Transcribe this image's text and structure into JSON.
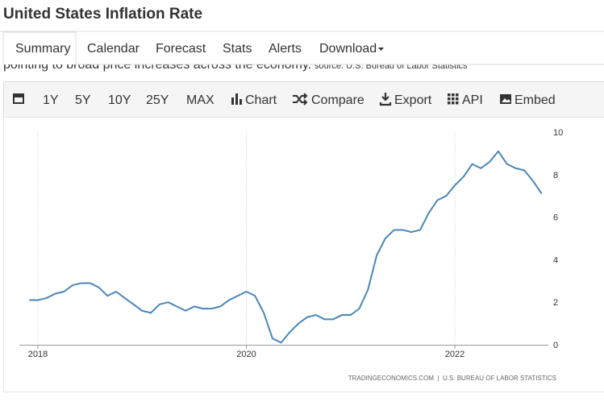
{
  "header": {
    "title": "United States Inflation Rate"
  },
  "nav": {
    "tabs": [
      "Summary",
      "Calendar",
      "Forecast",
      "Stats",
      "Alerts",
      "Download"
    ]
  },
  "description": {
    "text": "pointing to broad price increases across the economy.",
    "source": "source: U.S. Bureau of Labor Statistics"
  },
  "toolbar": {
    "ranges": [
      "1Y",
      "5Y",
      "10Y",
      "25Y",
      "MAX"
    ],
    "tools": [
      "Chart",
      "Compare",
      "Export",
      "API",
      "Embed"
    ]
  },
  "chart_data": {
    "type": "line",
    "x": [
      2017.917,
      2018,
      2018.083,
      2018.167,
      2018.25,
      2018.333,
      2018.417,
      2018.5,
      2018.583,
      2018.667,
      2018.75,
      2018.833,
      2018.917,
      2019,
      2019.083,
      2019.167,
      2019.25,
      2019.333,
      2019.417,
      2019.5,
      2019.583,
      2019.667,
      2019.75,
      2019.833,
      2019.917,
      2020,
      2020.083,
      2020.167,
      2020.25,
      2020.333,
      2020.417,
      2020.5,
      2020.583,
      2020.667,
      2020.75,
      2020.833,
      2020.917,
      2021,
      2021.083,
      2021.167,
      2021.25,
      2021.333,
      2021.417,
      2021.5,
      2021.583,
      2021.667,
      2021.75,
      2021.833,
      2021.917,
      2022,
      2022.083,
      2022.167,
      2022.25,
      2022.333,
      2022.417,
      2022.5,
      2022.583,
      2022.667,
      2022.75,
      2022.833
    ],
    "series": [
      {
        "name": "Inflation Rate",
        "color": "#4a86b8",
        "values": [
          2.1,
          2.1,
          2.2,
          2.4,
          2.5,
          2.8,
          2.9,
          2.9,
          2.7,
          2.3,
          2.5,
          2.2,
          1.9,
          1.6,
          1.5,
          1.9,
          2.0,
          1.8,
          1.6,
          1.8,
          1.7,
          1.7,
          1.8,
          2.1,
          2.3,
          2.5,
          2.3,
          1.5,
          0.3,
          0.1,
          0.6,
          1.0,
          1.3,
          1.4,
          1.2,
          1.2,
          1.4,
          1.4,
          1.7,
          2.6,
          4.2,
          5.0,
          5.4,
          5.4,
          5.3,
          5.4,
          6.2,
          6.8,
          7.0,
          7.5,
          7.9,
          8.5,
          8.3,
          8.6,
          9.1,
          8.5,
          8.3,
          8.2,
          7.7,
          7.1
        ]
      }
    ],
    "xlim": [
      2017.675,
      2022.897
    ],
    "xticks": [
      2018,
      2020,
      2022
    ],
    "ylim": [
      0,
      10
    ],
    "yticks": [
      0,
      2,
      4,
      6,
      8,
      10
    ],
    "credit": "TRADINGECONOMICS.COM  |  U.S. BUREAU OF LABOR STATISTICS"
  }
}
